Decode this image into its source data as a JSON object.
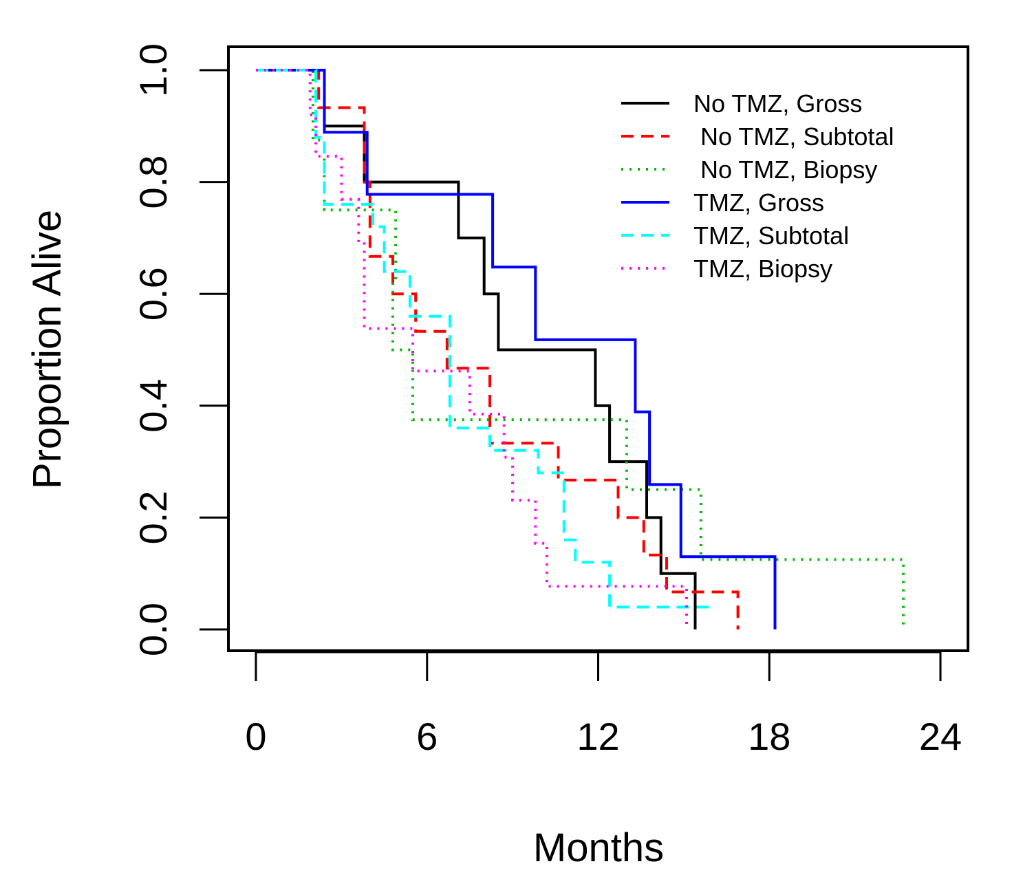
{
  "chart_data": {
    "type": "line",
    "subtype": "kaplan-meier step",
    "title": "",
    "xlabel": "Months",
    "ylabel": "Proportion Alive",
    "xlim": [
      0,
      24
    ],
    "ylim": [
      0,
      1
    ],
    "xticks": [
      0,
      6,
      12,
      18,
      24
    ],
    "xtick_labels": [
      "0",
      "6",
      "12",
      "18",
      "24"
    ],
    "yticks": [
      0,
      0.2,
      0.4,
      0.6,
      0.8,
      1.0
    ],
    "ytick_labels": [
      "0.0",
      "0.2",
      "0.4",
      "0.6",
      "0.8",
      "1.0"
    ],
    "grid": false,
    "legend_position": "top-right",
    "series": [
      {
        "name": "No TMZ, Gross",
        "color": "#000000",
        "dash": "solid",
        "points": [
          [
            0,
            1.0
          ],
          [
            2.4,
            1.0
          ],
          [
            2.4,
            0.9
          ],
          [
            3.8,
            0.9
          ],
          [
            3.8,
            0.8
          ],
          [
            7.1,
            0.8
          ],
          [
            7.1,
            0.7
          ],
          [
            8.0,
            0.7
          ],
          [
            8.0,
            0.6
          ],
          [
            8.5,
            0.6
          ],
          [
            8.5,
            0.5
          ],
          [
            11.9,
            0.5
          ],
          [
            11.9,
            0.4
          ],
          [
            12.4,
            0.4
          ],
          [
            12.4,
            0.3
          ],
          [
            13.7,
            0.3
          ],
          [
            13.7,
            0.2
          ],
          [
            14.2,
            0.2
          ],
          [
            14.2,
            0.1
          ],
          [
            15.4,
            0.1
          ],
          [
            15.4,
            0.0
          ]
        ]
      },
      {
        "name": " No TMZ, Subtotal",
        "color": "#ff0000",
        "dash": "dashed",
        "points": [
          [
            0,
            1.0
          ],
          [
            2.2,
            1.0
          ],
          [
            2.2,
            0.933
          ],
          [
            3.8,
            0.933
          ],
          [
            3.8,
            0.8
          ],
          [
            4.0,
            0.8
          ],
          [
            4.0,
            0.733
          ],
          [
            4.0,
            0.667
          ],
          [
            4.8,
            0.667
          ],
          [
            4.8,
            0.6
          ],
          [
            5.6,
            0.6
          ],
          [
            5.6,
            0.533
          ],
          [
            6.7,
            0.533
          ],
          [
            6.7,
            0.467
          ],
          [
            8.2,
            0.467
          ],
          [
            8.2,
            0.333
          ],
          [
            10.6,
            0.333
          ],
          [
            10.6,
            0.267
          ],
          [
            12.7,
            0.267
          ],
          [
            12.7,
            0.2
          ],
          [
            13.6,
            0.2
          ],
          [
            13.6,
            0.133
          ],
          [
            14.4,
            0.133
          ],
          [
            14.4,
            0.067
          ],
          [
            16.9,
            0.067
          ],
          [
            16.9,
            0.0
          ]
        ]
      },
      {
        "name": " No TMZ, Biopsy",
        "color": "#00bb00",
        "dash": "dotted",
        "points": [
          [
            0,
            1.0
          ],
          [
            2.0,
            1.0
          ],
          [
            2.0,
            0.875
          ],
          [
            2.4,
            0.875
          ],
          [
            2.4,
            0.75
          ],
          [
            4.9,
            0.75
          ],
          [
            4.9,
            0.625
          ],
          [
            4.8,
            0.625
          ],
          [
            4.8,
            0.5
          ],
          [
            5.5,
            0.5
          ],
          [
            5.5,
            0.375
          ],
          [
            13.0,
            0.375
          ],
          [
            13.0,
            0.25
          ],
          [
            15.6,
            0.25
          ],
          [
            15.6,
            0.125
          ],
          [
            22.7,
            0.125
          ],
          [
            22.7,
            0.0
          ]
        ]
      },
      {
        "name": "TMZ, Gross",
        "color": "#0000ff",
        "dash": "solid",
        "points": [
          [
            0,
            1.0
          ],
          [
            2.4,
            1.0
          ],
          [
            2.4,
            0.889
          ],
          [
            3.9,
            0.889
          ],
          [
            3.9,
            0.778
          ],
          [
            8.3,
            0.778
          ],
          [
            8.3,
            0.648
          ],
          [
            9.8,
            0.648
          ],
          [
            9.8,
            0.518
          ],
          [
            13.3,
            0.518
          ],
          [
            13.3,
            0.389
          ],
          [
            13.8,
            0.389
          ],
          [
            13.8,
            0.259
          ],
          [
            14.9,
            0.259
          ],
          [
            14.9,
            0.13
          ],
          [
            18.2,
            0.13
          ],
          [
            18.2,
            0.0
          ]
        ]
      },
      {
        "name": "TMZ, Subtotal",
        "color": "#00ffff",
        "dash": "dashed",
        "points": [
          [
            0,
            1.0
          ],
          [
            2.1,
            1.0
          ],
          [
            2.1,
            0.88
          ],
          [
            2.4,
            0.88
          ],
          [
            2.4,
            0.76
          ],
          [
            4.1,
            0.76
          ],
          [
            4.1,
            0.72
          ],
          [
            4.5,
            0.72
          ],
          [
            4.5,
            0.64
          ],
          [
            5.4,
            0.64
          ],
          [
            5.4,
            0.56
          ],
          [
            6.8,
            0.56
          ],
          [
            6.8,
            0.36
          ],
          [
            8.2,
            0.36
          ],
          [
            8.2,
            0.32
          ],
          [
            9.9,
            0.32
          ],
          [
            9.9,
            0.28
          ],
          [
            10.8,
            0.28
          ],
          [
            10.8,
            0.16
          ],
          [
            11.2,
            0.16
          ],
          [
            11.2,
            0.12
          ],
          [
            12.4,
            0.12
          ],
          [
            12.4,
            0.04
          ],
          [
            16.1,
            0.04
          ]
        ]
      },
      {
        "name": "TMZ, Biopsy",
        "color": "#ff00ff",
        "dash": "dotted",
        "points": [
          [
            0,
            1.0
          ],
          [
            1.9,
            1.0
          ],
          [
            1.9,
            0.92
          ],
          [
            2.1,
            0.92
          ],
          [
            2.1,
            0.846
          ],
          [
            3.0,
            0.846
          ],
          [
            3.0,
            0.769
          ],
          [
            3.6,
            0.769
          ],
          [
            3.6,
            0.692
          ],
          [
            3.8,
            0.692
          ],
          [
            3.8,
            0.538
          ],
          [
            5.5,
            0.538
          ],
          [
            5.5,
            0.462
          ],
          [
            7.5,
            0.462
          ],
          [
            7.5,
            0.385
          ],
          [
            8.7,
            0.385
          ],
          [
            8.7,
            0.308
          ],
          [
            9.0,
            0.308
          ],
          [
            9.0,
            0.231
          ],
          [
            9.8,
            0.231
          ],
          [
            9.8,
            0.154
          ],
          [
            10.2,
            0.154
          ],
          [
            10.2,
            0.077
          ],
          [
            15.1,
            0.077
          ],
          [
            15.1,
            0.0
          ]
        ]
      }
    ]
  }
}
